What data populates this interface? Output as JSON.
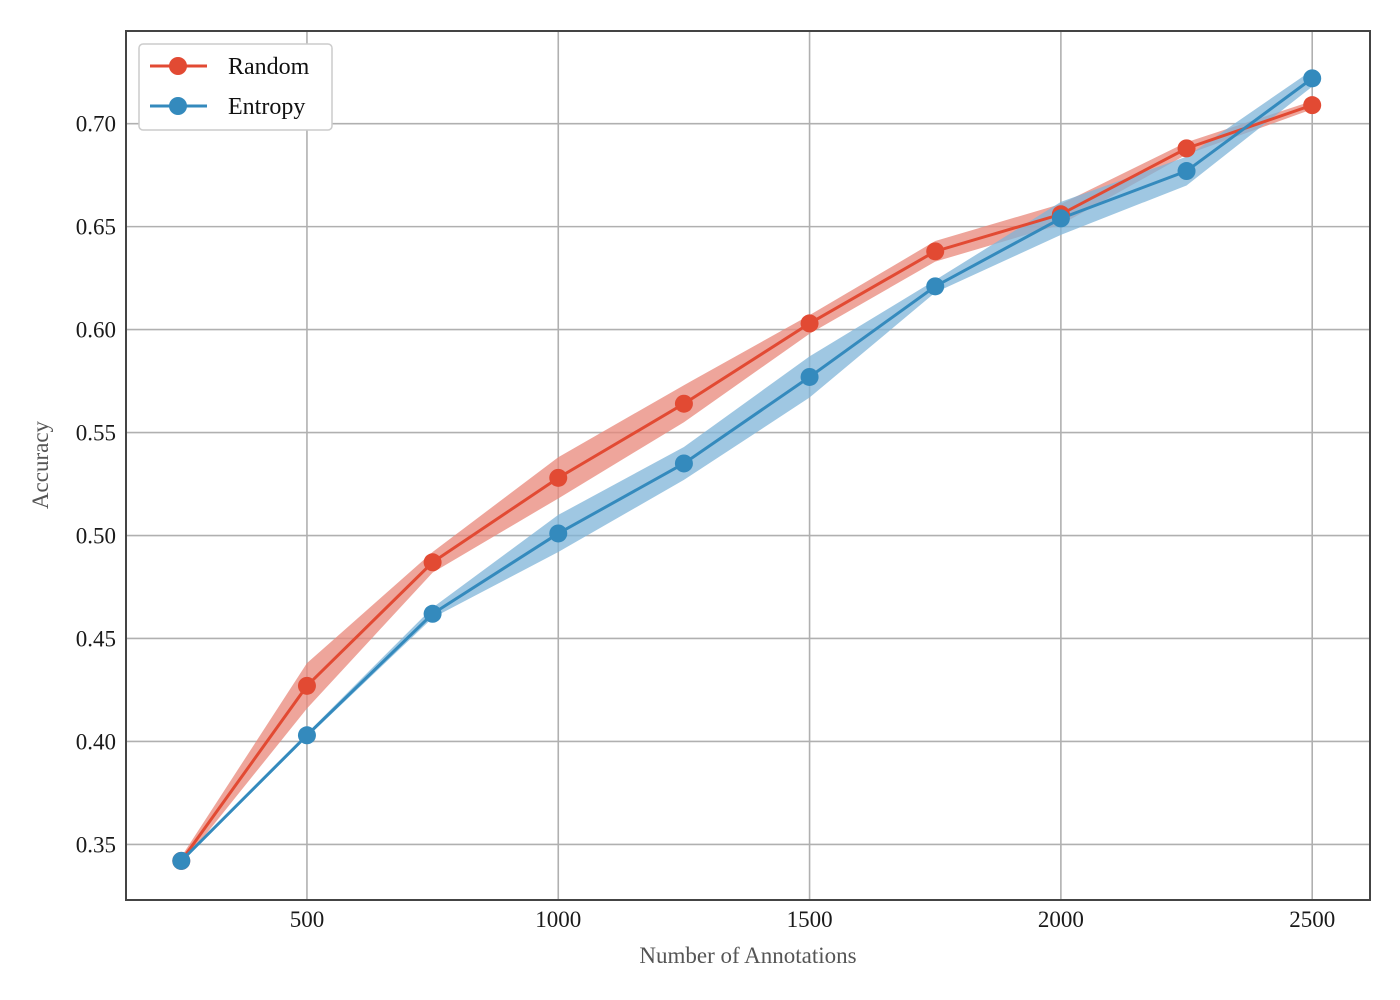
{
  "chart_data": {
    "type": "line",
    "xlabel": "Number of Annotations",
    "ylabel": "Accuracy",
    "xlim": [
      140,
      2615
    ],
    "ylim": [
      0.323,
      0.745
    ],
    "x_ticks": [
      500,
      1000,
      1500,
      2000,
      2500
    ],
    "y_ticks": [
      0.35,
      0.4,
      0.45,
      0.5,
      0.55,
      0.6,
      0.65,
      0.7
    ],
    "x_tick_labels": [
      "500",
      "1000",
      "1500",
      "2000",
      "2500"
    ],
    "y_tick_labels": [
      "0.35",
      "0.40",
      "0.45",
      "0.50",
      "0.55",
      "0.60",
      "0.65",
      "0.70"
    ],
    "grid": true,
    "legend_position": "top-left",
    "x": [
      250,
      500,
      750,
      1000,
      1250,
      1500,
      1750,
      2000,
      2250,
      2500
    ],
    "series": [
      {
        "name": "Random",
        "color": "#e24a33",
        "band_color": "#e8877a",
        "values": [
          0.342,
          0.427,
          0.487,
          0.528,
          0.564,
          0.603,
          0.638,
          0.656,
          0.688,
          0.709
        ],
        "lower": [
          0.34,
          0.416,
          0.482,
          0.518,
          0.555,
          0.598,
          0.633,
          0.651,
          0.685,
          0.707
        ],
        "upper": [
          0.344,
          0.438,
          0.492,
          0.538,
          0.573,
          0.607,
          0.643,
          0.661,
          0.691,
          0.711
        ]
      },
      {
        "name": "Entropy",
        "color": "#348abd",
        "band_color": "#7fb4d8",
        "values": [
          0.342,
          0.403,
          0.462,
          0.501,
          0.535,
          0.577,
          0.621,
          0.654,
          0.677,
          0.722
        ],
        "lower": [
          0.341,
          0.402,
          0.46,
          0.492,
          0.527,
          0.567,
          0.618,
          0.646,
          0.67,
          0.718
        ],
        "upper": [
          0.343,
          0.404,
          0.465,
          0.51,
          0.543,
          0.587,
          0.624,
          0.662,
          0.684,
          0.726
        ]
      }
    ]
  }
}
